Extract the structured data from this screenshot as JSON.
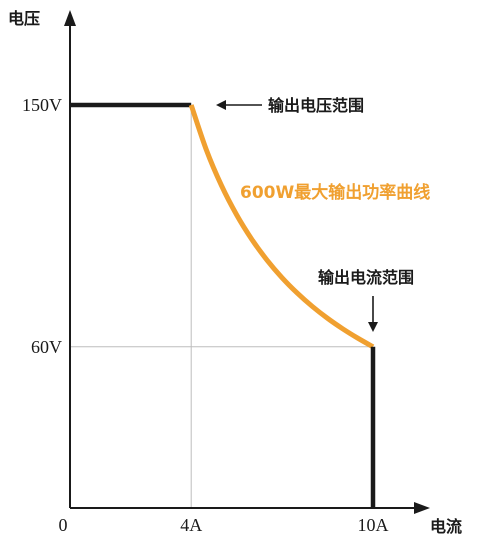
{
  "chart_data": {
    "type": "line",
    "title": "",
    "xlabel": "电流",
    "ylabel": "电压",
    "xlim": [
      0,
      10
    ],
    "ylim": [
      0,
      150
    ],
    "xticks": [
      {
        "value": 0,
        "label": "0"
      },
      {
        "value": 4,
        "label": "4A"
      },
      {
        "value": 10,
        "label": "10A"
      }
    ],
    "yticks": [
      {
        "value": 150,
        "label": "150V"
      },
      {
        "value": 60,
        "label": "60V"
      }
    ],
    "series": [
      {
        "name": "输出电压范围",
        "color": "#1a1a1a",
        "points": [
          [
            0,
            150
          ],
          [
            4,
            150
          ]
        ]
      },
      {
        "name": "600W最大输出功率曲线",
        "color": "#f0a030",
        "points": [
          [
            4,
            150
          ],
          [
            4.5,
            133.3
          ],
          [
            5,
            120
          ],
          [
            5.5,
            109.1
          ],
          [
            6,
            100
          ],
          [
            6.5,
            92.3
          ],
          [
            7,
            85.7
          ],
          [
            7.5,
            80
          ],
          [
            8,
            75
          ],
          [
            8.5,
            70.6
          ],
          [
            9,
            66.7
          ],
          [
            9.5,
            63.2
          ],
          [
            10,
            60
          ]
        ]
      },
      {
        "name": "输出电流范围",
        "color": "#1a1a1a",
        "points": [
          [
            10,
            60
          ],
          [
            10,
            0
          ]
        ]
      }
    ],
    "annotations": {
      "voltage_range": "输出电压范围",
      "power_curve": "600W最大输出功率曲线",
      "current_range": "输出电流范围"
    }
  }
}
